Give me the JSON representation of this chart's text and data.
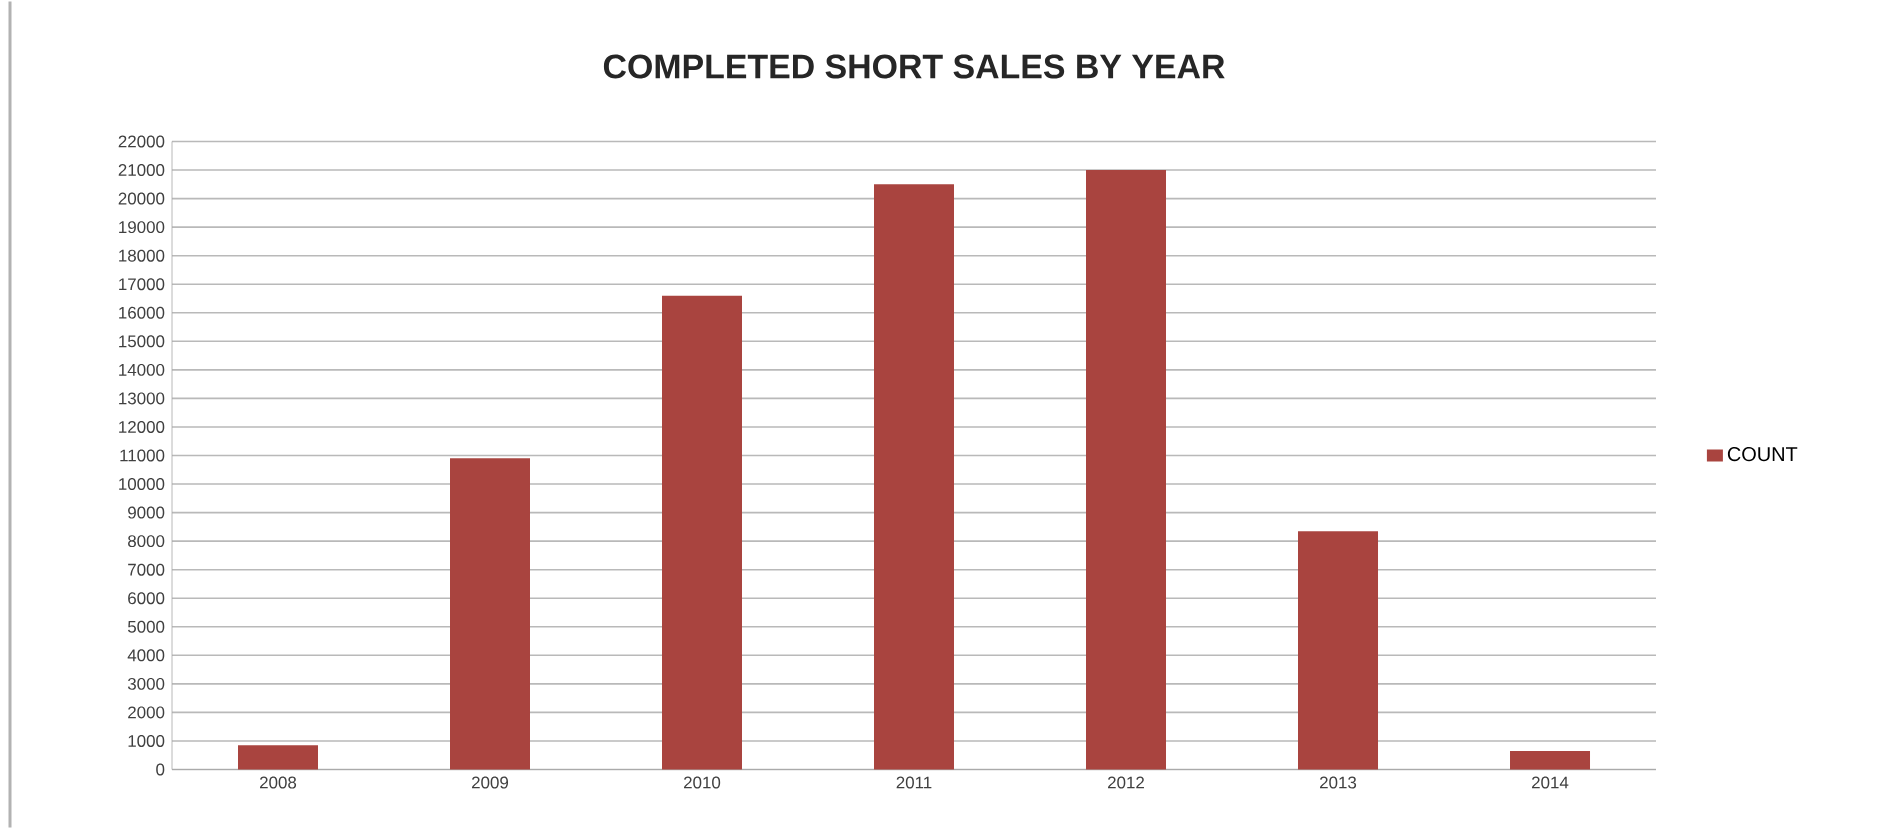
{
  "chart_data": {
    "type": "bar",
    "title": "COMPLETED SHORT SALES BY YEAR",
    "categories": [
      "2008",
      "2009",
      "2010",
      "2011",
      "2012",
      "2013",
      "2014"
    ],
    "series": [
      {
        "name": "COUNT",
        "color": "#a9443f",
        "values": [
          850,
          10900,
          16600,
          20500,
          21000,
          8350,
          650
        ]
      }
    ],
    "ylim": [
      0,
      22000
    ],
    "yticks": [
      0,
      1000,
      2000,
      3000,
      4000,
      5000,
      6000,
      7000,
      8000,
      9000,
      10000,
      11000,
      12000,
      13000,
      14000,
      15000,
      16000,
      17000,
      18000,
      19000,
      20000,
      21000,
      22000
    ],
    "grid": "y",
    "legend": "right"
  }
}
